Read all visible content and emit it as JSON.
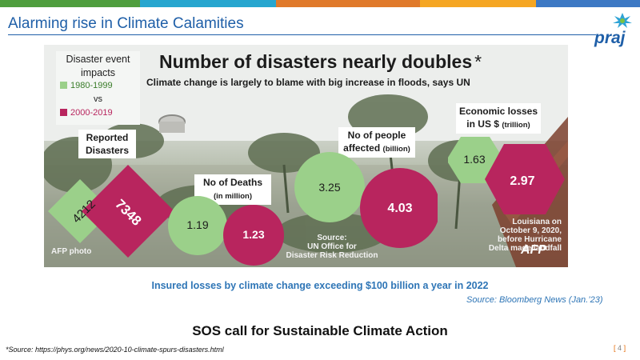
{
  "colors": {
    "bar": [
      "#4f9e3e",
      "#27a6cf",
      "#e07a2b",
      "#f5a623",
      "#3d79c4"
    ],
    "green_1980": "#9bd08a",
    "magenta_2000": "#b8255e",
    "title_blue": "#1f5fa8",
    "accent_blue": "#2e75b6"
  },
  "slide": {
    "title": "Alarming rise in Climate Calamities",
    "logo_text": "praj"
  },
  "infographic": {
    "title": "Number of disasters nearly doubles",
    "title_asterisk": "*",
    "subtitle": "Climate change is largely to blame with big increase in floods, says UN",
    "legend": {
      "title_line1": "Disaster event",
      "title_line2": "impacts",
      "period_1": "1980-1999",
      "vs": "vs",
      "period_2": "2000-2019"
    },
    "reported": {
      "label_line1": "Reported",
      "label_line2": "Disasters",
      "v1980": "4212",
      "v2000": "7348"
    },
    "deaths": {
      "label": "No of Deaths",
      "unit": "(in million)",
      "v1980": "1.19",
      "v2000": "1.23"
    },
    "affected": {
      "label_line1": "No of people",
      "label_line2": "affected",
      "unit": "(billion)",
      "v1980": "3.25",
      "v2000": "4.03"
    },
    "economic": {
      "label_line1": "Economic losses",
      "label_line2": "in US $",
      "unit": "(trillion)",
      "v1980": "1.63",
      "v2000": "2.97"
    },
    "source_line1": "Source:",
    "source_line2": "UN Office for",
    "source_line3": "Disaster Risk Reduction",
    "caption_line1": "Louisiana on",
    "caption_line2": "October 9, 2020,",
    "caption_line3": "before Hurricane",
    "caption_line4": "Delta made landfall",
    "photo_credit": "AFP photo",
    "afp_mark": "AFP"
  },
  "insured_text": "Insured losses by climate change exceeding $100 billion a year in 2022",
  "source_bloomberg": "Source: Bloomberg News (Jan.’23)",
  "sos_text": "SOS call for Sustainable Climate Action",
  "footnote": "*Source: https://phys.org/news/2020-10-climate-spurs-disasters.html",
  "page_number": "4"
}
